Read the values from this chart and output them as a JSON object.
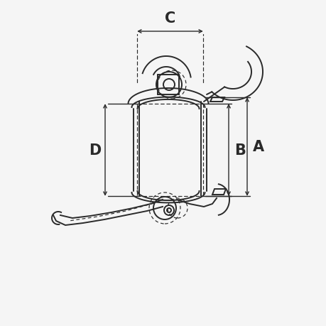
{
  "bg_color": "#f5f5f5",
  "line_color": "#2a2a2a",
  "dim_color": "#2a2a2a",
  "label_C": "C",
  "label_D": "D",
  "label_B": "B",
  "label_A": "A",
  "fig_width": 4.6,
  "fig_height": 4.6,
  "dpi": 100,
  "lw_main": 1.4,
  "lw_dim": 1.0,
  "lw_dash": 0.85
}
